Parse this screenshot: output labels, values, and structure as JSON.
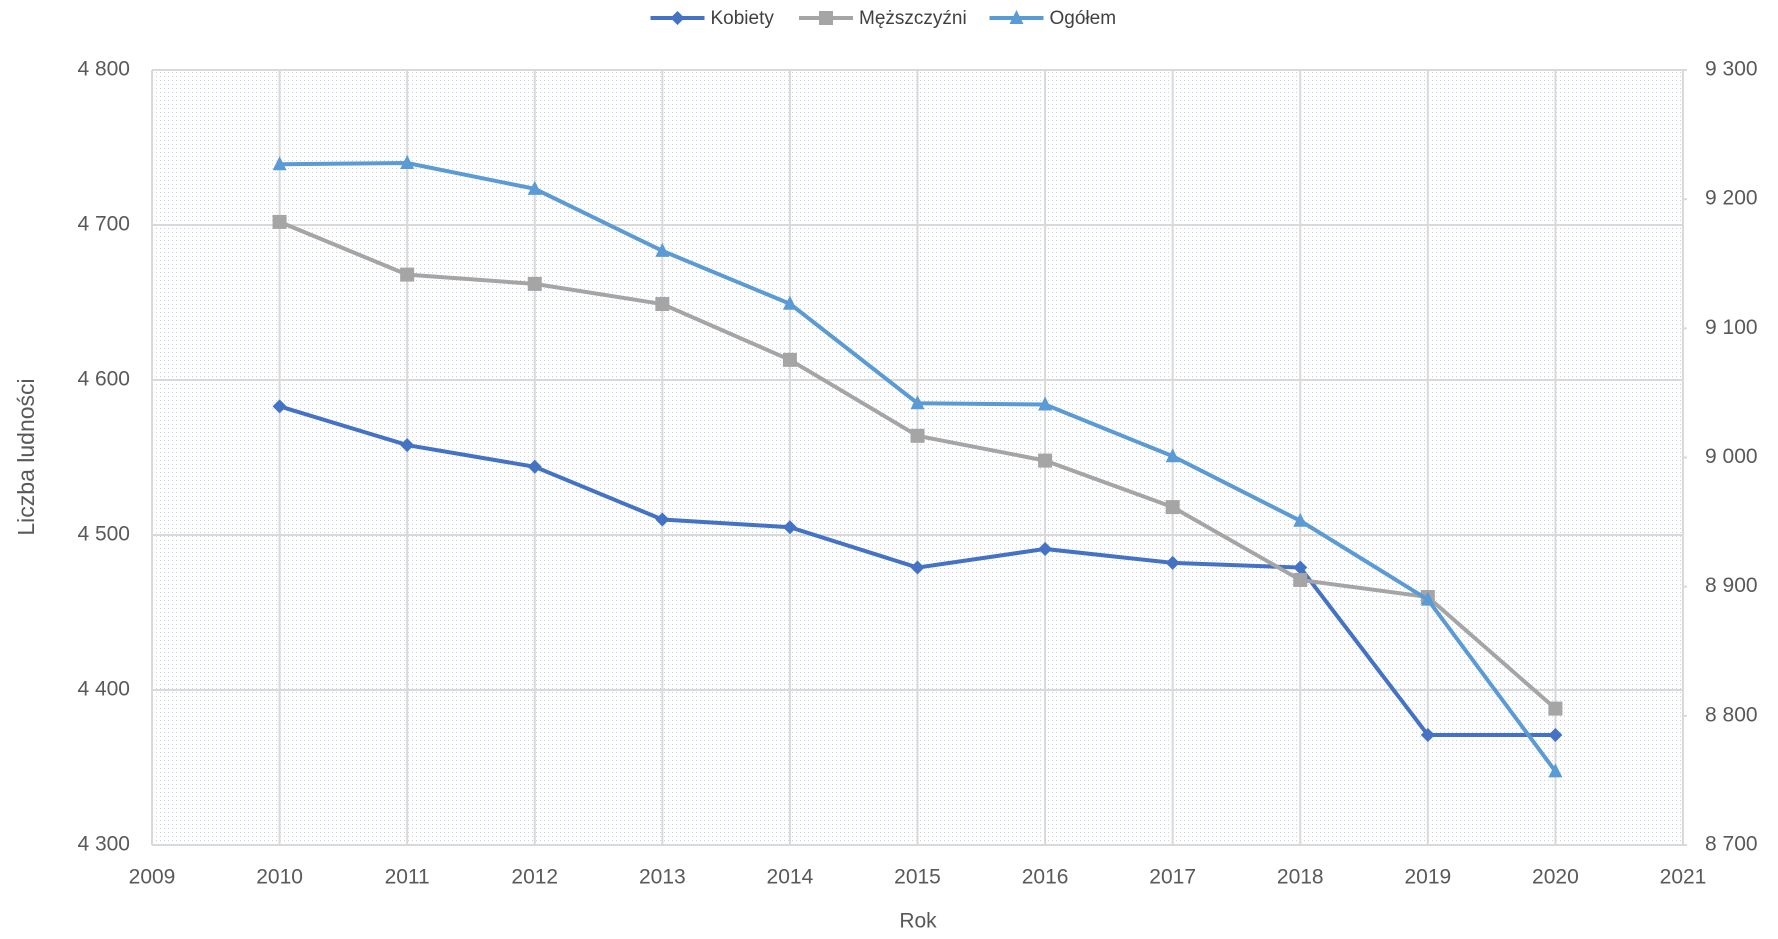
{
  "chart_data": {
    "type": "line",
    "x": [
      2010,
      2011,
      2012,
      2013,
      2014,
      2015,
      2016,
      2017,
      2018,
      2019,
      2020
    ],
    "series": [
      {
        "name": "Kobiety",
        "color": "#4472c4",
        "marker": "diamond",
        "values": [
          4583,
          4558,
          4544,
          4510,
          4505,
          4479,
          4491,
          4482,
          4479,
          4371,
          4371
        ]
      },
      {
        "name": "Męższczyźni",
        "color": "#a5a5a5",
        "marker": "square",
        "values": [
          4702,
          4668,
          4662,
          4649,
          4613,
          4564,
          4548,
          4518,
          4471,
          4460,
          4388
        ]
      },
      {
        "name": "Ogółem",
        "color": "#5b9bd5",
        "marker": "triangle",
        "axis": "y2",
        "values": [
          9227,
          9228,
          9208,
          9160,
          9119,
          9042,
          9041,
          9001,
          8951,
          8890,
          8757
        ]
      }
    ],
    "xlabel": "Rok",
    "ylabel": "Liczba ludności",
    "xlim": [
      2009,
      2021
    ],
    "xticks": [
      2009,
      2010,
      2011,
      2012,
      2013,
      2014,
      2015,
      2016,
      2017,
      2018,
      2019,
      2020,
      2021
    ],
    "ylim": [
      4300,
      4800
    ],
    "yticks": [
      {
        "value": 4300,
        "label": "4 300"
      },
      {
        "value": 4400,
        "label": "4 400"
      },
      {
        "value": 4500,
        "label": "4 500"
      },
      {
        "value": 4600,
        "label": "4 600"
      },
      {
        "value": 4700,
        "label": "4 700"
      },
      {
        "value": 4800,
        "label": "4 800"
      }
    ],
    "y2lim": [
      8700,
      9300
    ],
    "y2ticks": [
      {
        "value": 8700,
        "label": "8 700"
      },
      {
        "value": 8800,
        "label": "8 800"
      },
      {
        "value": 8900,
        "label": "8 900"
      },
      {
        "value": 9000,
        "label": "9 000"
      },
      {
        "value": 9100,
        "label": "9 100"
      },
      {
        "value": 9200,
        "label": "9 200"
      },
      {
        "value": 9300,
        "label": "9 300"
      }
    ],
    "grid": true,
    "legend": "top"
  }
}
